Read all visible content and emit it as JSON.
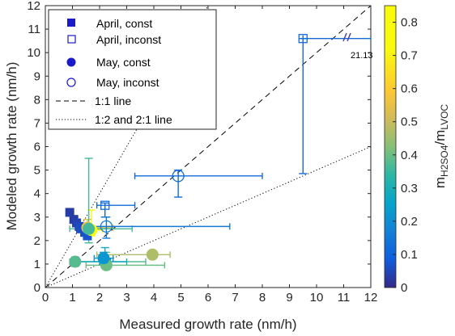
{
  "chart_data": {
    "type": "scatter",
    "title": "",
    "xlabel": "Measured growth rate (nm/h)",
    "ylabel": "Modeled growth rate (nm/h)",
    "xlim": [
      0,
      12
    ],
    "ylim": [
      0,
      12
    ],
    "x_ticks": [
      "0",
      "1",
      "2",
      "3",
      "4",
      "5",
      "6",
      "7",
      "8",
      "9",
      "10",
      "11",
      "12"
    ],
    "y_ticks": [
      "0",
      "1",
      "2",
      "3",
      "4",
      "5",
      "6",
      "7",
      "8",
      "9",
      "10",
      "11",
      "12"
    ],
    "grid": false,
    "colorbar": {
      "label_main": "m",
      "label_sub1": "H2SO4",
      "label_sep": "/m",
      "label_sub2": "LVOC",
      "range": [
        0,
        0.85
      ],
      "ticks": [
        "0",
        "0.1",
        "0.2",
        "0.3",
        "0.4",
        "0.5",
        "0.6",
        "0.7",
        "0.8"
      ],
      "colormap": "parula"
    },
    "legend": {
      "placement": "top-left",
      "entries": [
        {
          "label": "April, const",
          "marker": "square-filled"
        },
        {
          "label": "April, inconst",
          "marker": "square-open"
        },
        {
          "label": "May, const",
          "marker": "circle-filled"
        },
        {
          "label": "May, inconst",
          "marker": "circle-open"
        },
        {
          "label": "1:1 line",
          "marker": "dashed-line"
        },
        {
          "label": "1:2 and 2:1 line",
          "marker": "dotted-line"
        }
      ]
    },
    "reference_lines": [
      {
        "name": "1:1 line",
        "slope": 1,
        "style": "dashed"
      },
      {
        "name": "1:2 and 2:1 line",
        "slope": 2,
        "style": "dotted"
      },
      {
        "name": "1:2 and 2:1 line",
        "slope": 0.5,
        "style": "dotted"
      }
    ],
    "axis_break_annotation": "21.13",
    "series": [
      {
        "name": "April, const",
        "marker": "square-filled",
        "points": [
          {
            "x": 0.9,
            "y": 3.2,
            "c": 0.03
          },
          {
            "x": 1.05,
            "y": 2.9,
            "c": 0.03
          },
          {
            "x": 1.15,
            "y": 2.75,
            "c": 0.04
          },
          {
            "x": 1.25,
            "y": 2.6,
            "c": 0.05
          },
          {
            "x": 1.3,
            "y": 2.5,
            "c": 0.06
          },
          {
            "x": 1.45,
            "y": 2.35,
            "c": 0.06
          },
          {
            "x": 1.55,
            "y": 2.2,
            "c": 0.07
          }
        ]
      },
      {
        "name": "April, inconst",
        "marker": "square-open",
        "points": [
          {
            "x": 2.2,
            "y": 3.5,
            "c": 0.12,
            "xerr": [
              1.9,
              3.3
            ],
            "yerr": [
              3.0,
              3.6
            ]
          },
          {
            "x": 9.5,
            "y": 10.6,
            "c": 0.12,
            "xerr": [
              9.5,
              12.0
            ],
            "yerr": [
              4.85,
              10.6
            ]
          }
        ]
      },
      {
        "name": "May, const",
        "marker": "circle-filled",
        "points": [
          {
            "x": 1.7,
            "y": 2.45,
            "c": 0.82,
            "xerr": [
              1.5,
              2.1
            ],
            "yerr": [
              2.2,
              3.3
            ]
          },
          {
            "x": 1.55,
            "y": 2.55,
            "c": 0.55,
            "xerr": [
              1.1,
              2.5
            ],
            "yerr": [
              2.3,
              2.9
            ]
          },
          {
            "x": 1.6,
            "y": 2.5,
            "c": 0.36,
            "xerr": [
              0.9,
              3.2
            ],
            "yerr": [
              1.9,
              5.5
            ]
          },
          {
            "x": 1.1,
            "y": 1.1,
            "c": 0.38,
            "xerr": [
              0.9,
              3.7
            ],
            "yerr": [
              0.9,
              1.3
            ]
          },
          {
            "x": 2.2,
            "y": 1.1,
            "c": 0.28,
            "xerr": [
              1.2,
              3.0
            ],
            "yerr": [
              0.9,
              1.7
            ]
          },
          {
            "x": 2.25,
            "y": 0.95,
            "c": 0.4,
            "xerr": [
              1.5,
              4.4
            ],
            "yerr": [
              0.8,
              1.5
            ]
          },
          {
            "x": 2.15,
            "y": 1.25,
            "c": 0.22,
            "xerr": [
              1.8,
              2.5
            ],
            "yerr": [
              1.0,
              1.5
            ]
          },
          {
            "x": 3.95,
            "y": 1.4,
            "c": 0.47,
            "xerr": [
              1.9,
              4.6
            ],
            "yerr": [
              1.3,
              1.5
            ]
          }
        ]
      },
      {
        "name": "May, inconst",
        "marker": "circle-open",
        "points": [
          {
            "x": 2.25,
            "y": 2.6,
            "c": 0.15,
            "xerr": [
              1.2,
              6.8
            ],
            "yerr": [
              2.1,
              3.0
            ]
          },
          {
            "x": 4.9,
            "y": 4.75,
            "c": 0.12,
            "xerr": [
              3.3,
              8.0
            ],
            "yerr": [
              3.85,
              5.0
            ]
          }
        ]
      }
    ]
  }
}
